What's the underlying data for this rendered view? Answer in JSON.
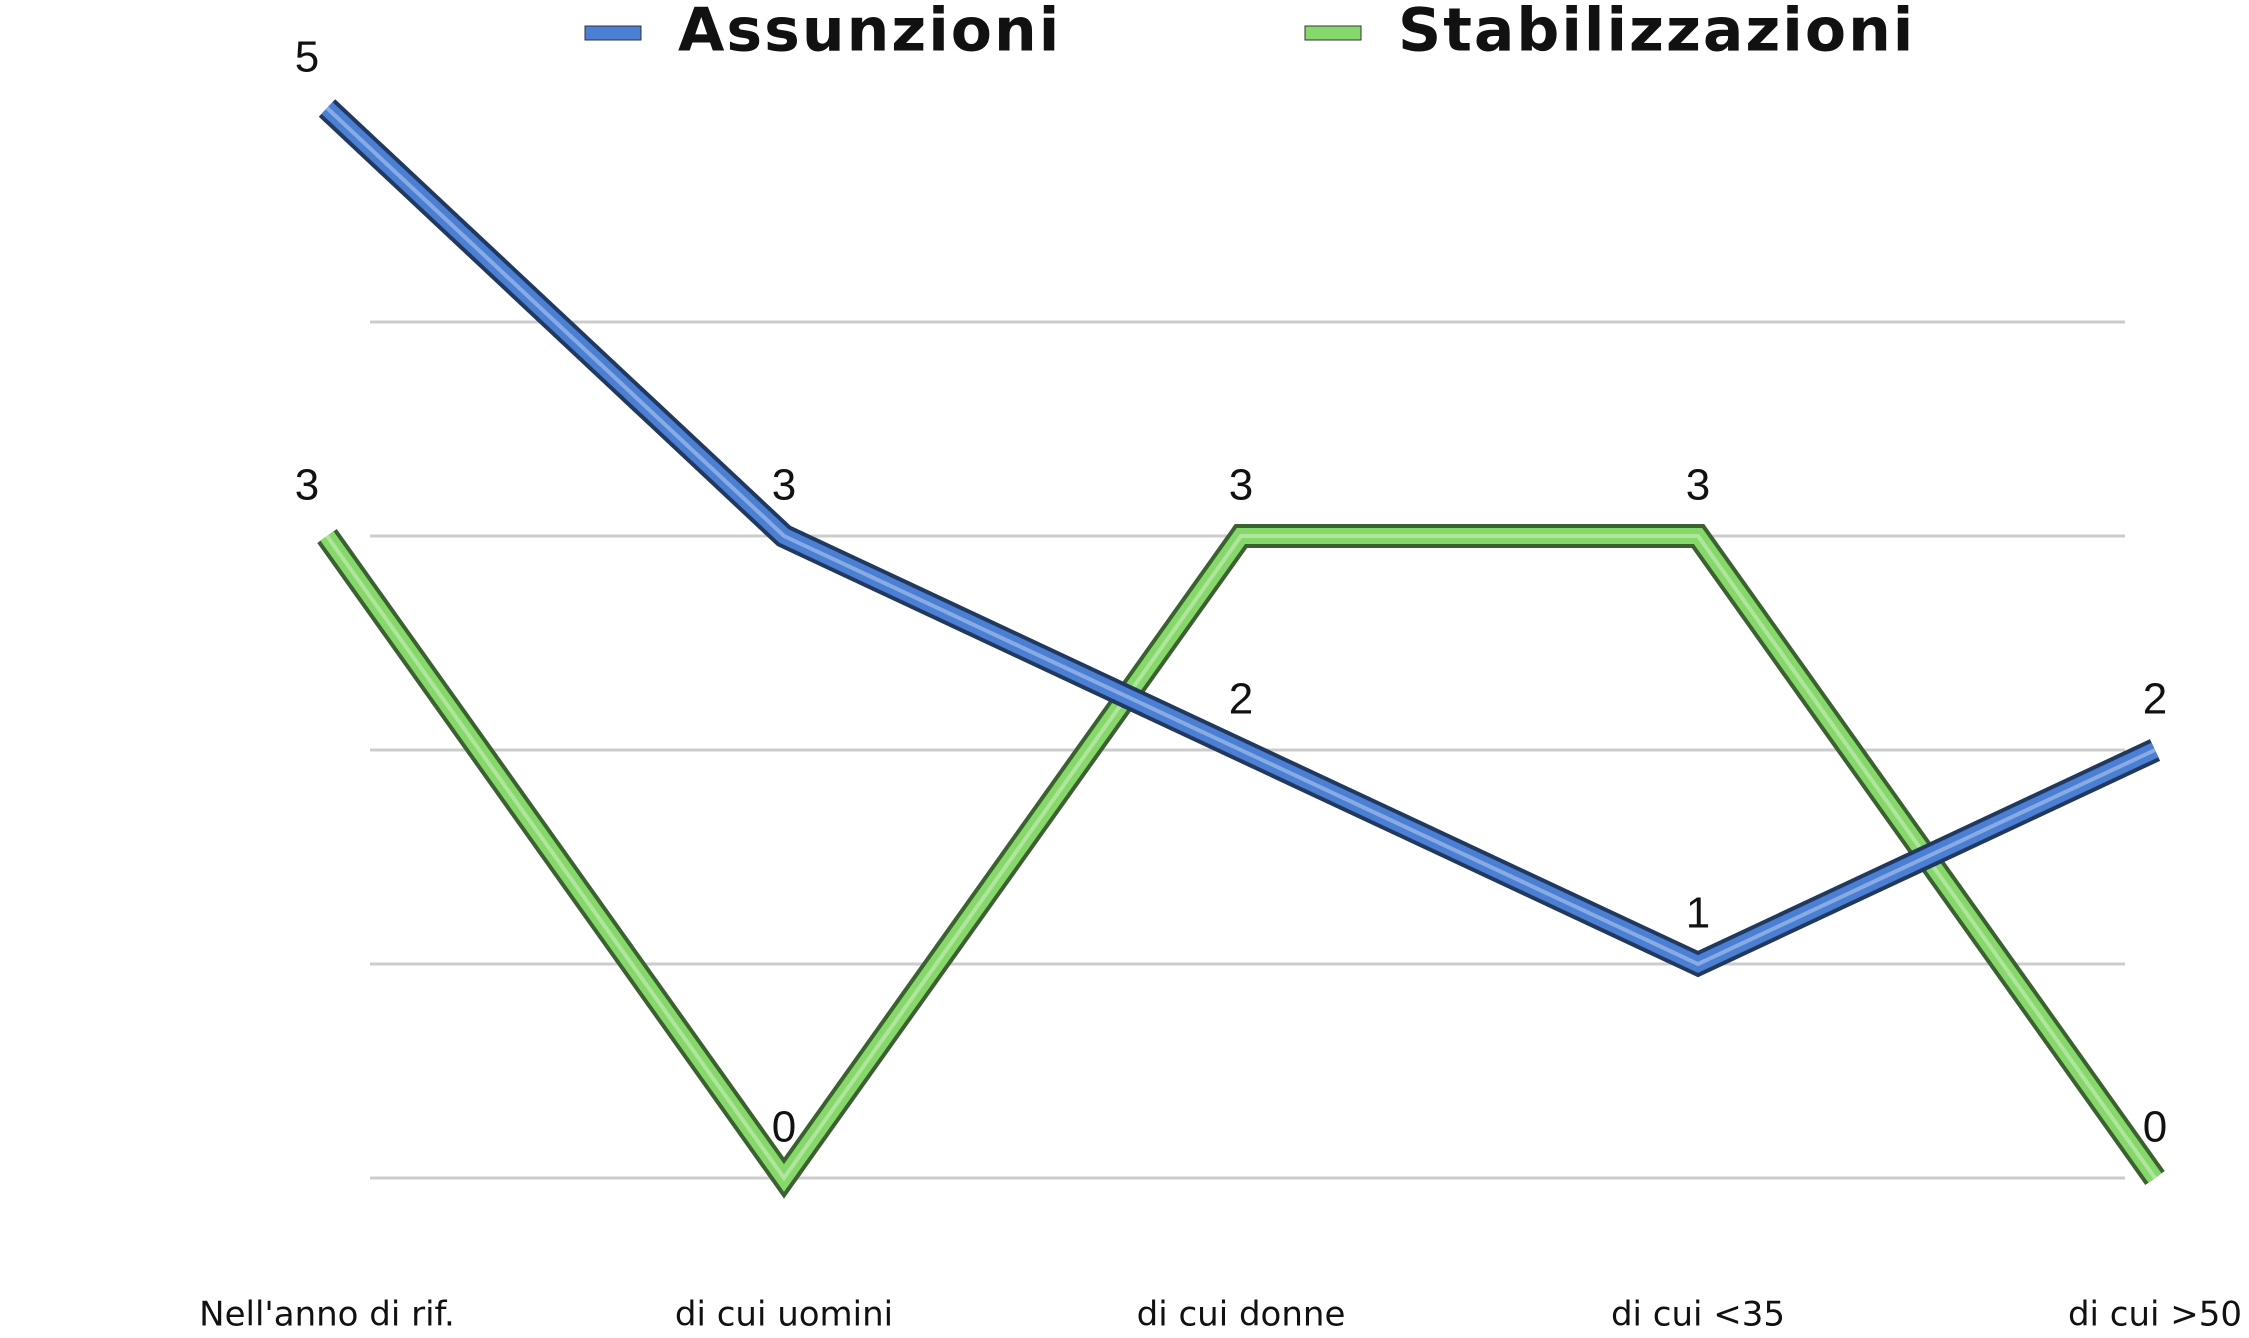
{
  "chart_data": {
    "type": "line",
    "categories": [
      "Nell'anno di rif.",
      "di cui uomini",
      "di cui donne",
      "di cui <35",
      "di cui >50"
    ],
    "series": [
      {
        "name": "Assunzioni",
        "color": "#4a7fd4",
        "values": [
          5,
          3,
          2,
          1,
          2
        ]
      },
      {
        "name": "Stabilizzazioni",
        "color": "#86d86a",
        "values": [
          3,
          0,
          3,
          3,
          0
        ]
      }
    ],
    "ylim": [
      0,
      5
    ],
    "yticks": [
      0,
      1,
      2,
      3,
      4
    ],
    "grid": true,
    "legend": "top"
  }
}
